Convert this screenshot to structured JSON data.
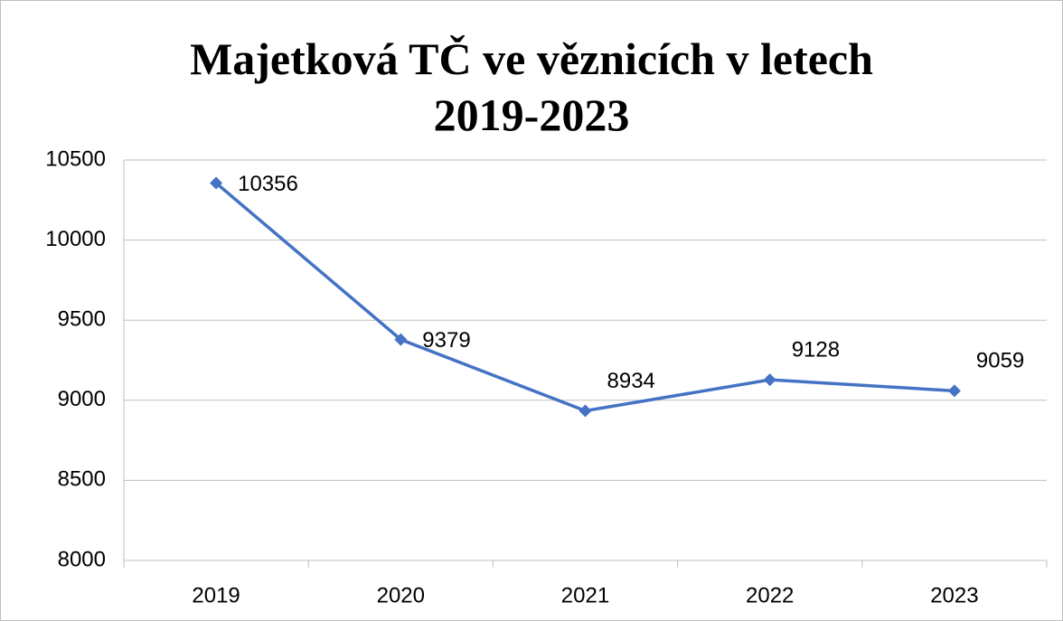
{
  "chart_data": {
    "type": "line",
    "title": "Majetková TČ ve věznicích v letech 2019-2023",
    "categories": [
      "2019",
      "2020",
      "2021",
      "2022",
      "2023"
    ],
    "series": [
      {
        "name": "Majetková TČ",
        "color": "#4472c4",
        "values": [
          10356,
          9379,
          8934,
          9128,
          9059
        ]
      }
    ],
    "ylim": [
      8000,
      10500
    ],
    "yticks": [
      8000,
      8500,
      9000,
      9500,
      10000,
      10500
    ],
    "grid": true
  }
}
